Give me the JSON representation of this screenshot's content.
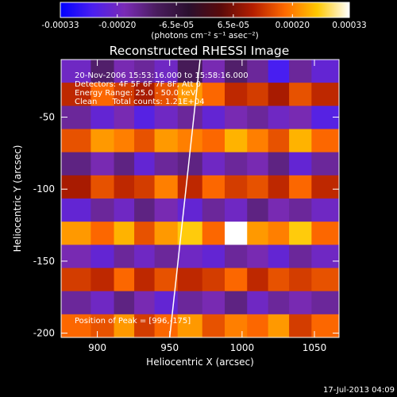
{
  "colors": {
    "background": "#000000",
    "foreground": "#ffffff",
    "colormap": [
      "#0000ff",
      "#4b1ff0",
      "#7a2bb6",
      "#4a1d5e",
      "#2a0f2e",
      "#5a0a0a",
      "#b41e00",
      "#ff6a00",
      "#ffc800",
      "#ffffff"
    ]
  },
  "chart_data": {
    "type": "heatmap",
    "title": "Reconstructed RHESSI Image",
    "xlabel": "Heliocentric X (arcsec)",
    "ylabel": "Heliocentric Y (arcsec)",
    "xlim": [
      875,
      1067
    ],
    "ylim": [
      -203,
      -10
    ],
    "xticks": [
      900,
      950,
      1000,
      1050
    ],
    "yticks": [
      -50,
      -100,
      -150,
      -200
    ],
    "colorbar": {
      "min": -0.00033,
      "max": 0.00033,
      "ticks": [
        -0.00033,
        -0.0002,
        -6.5e-05,
        6.5e-05,
        0.0002,
        0.00033
      ],
      "tick_labels": [
        "-0.00033",
        "-0.00020",
        "-6.5e-05",
        "6.5e-05",
        "0.00020",
        "0.00033"
      ],
      "unit_label": "(photons cm⁻² s⁻¹ asec⁻²)"
    },
    "annotations": {
      "time": "20-Nov-2006 15:53:16.000 to 15:58:16.000",
      "detectors": "Detectors: 4F 5F 6F 7F 8F, Att 0",
      "energy": "Energy Range: 25.0 - 50.0 keV",
      "method": "Clean      Total counts: 1.21E+04",
      "peak": "Position of Peak = [996,-175]"
    },
    "limb_line": [
      [
        950,
        -203
      ],
      [
        971,
        -10
      ]
    ],
    "column_x": [
      886,
      905,
      918,
      933,
      946,
      965,
      980,
      996,
      1011,
      1025,
      1040,
      1056
    ],
    "column_values": [
      [
        -0.0002,
        -0.00012,
        -0.00018,
        -0.00016,
        -0.0002,
        -0.0001,
        -0.00018,
        -0.00012,
        -0.00016,
        -0.00026,
        -0.00016,
        -0.00022
      ],
      [
        0.00012,
        0.00018,
        0.00014,
        0.0001,
        0.00016,
        0.00022,
        0.00018,
        0.00012,
        0.00014,
        0.0001,
        0.00016,
        0.00012
      ],
      [
        -0.00016,
        -0.00022,
        -0.00018,
        -0.00024,
        -0.0002,
        -0.00016,
        -0.00022,
        -0.00018,
        -0.00016,
        -0.0002,
        -0.00018,
        -0.00024
      ],
      [
        0.00016,
        0.00022,
        0.0002,
        0.00016,
        0.00022,
        0.0002,
        0.00018,
        0.00024,
        0.0002,
        0.00016,
        0.00024,
        0.00018
      ],
      [
        -0.00014,
        -0.00018,
        -0.00014,
        -0.00022,
        -0.00016,
        -0.00014,
        -0.0002,
        -0.00016,
        -0.00018,
        -0.00014,
        -0.00022,
        -0.00016
      ],
      [
        0.0001,
        0.00016,
        0.00012,
        0.00014,
        0.0002,
        0.00012,
        0.00018,
        0.00014,
        0.00016,
        0.00012,
        0.00018,
        0.00012
      ],
      [
        -0.00022,
        -0.00016,
        -0.0002,
        -0.00014,
        -0.00018,
        -0.00022,
        -0.00016,
        -0.0002,
        -0.00014,
        -0.00018,
        -0.00016,
        -0.0002
      ],
      [
        0.00022,
        0.00018,
        0.00024,
        0.00016,
        0.00022,
        0.00026,
        0.00018,
        0.00033,
        0.00022,
        0.0002,
        0.00026,
        0.00018
      ],
      [
        -0.00018,
        -0.00022,
        -0.00016,
        -0.0002,
        -0.00016,
        -0.0002,
        -0.00022,
        -0.00016,
        -0.00018,
        -0.00022,
        -0.00016,
        -0.0002
      ],
      [
        0.00014,
        0.00012,
        0.00018,
        0.00012,
        0.00016,
        0.00012,
        0.00014,
        0.00018,
        0.00012,
        0.00016,
        0.00014,
        0.00016
      ],
      [
        -0.00016,
        -0.0002,
        -0.00014,
        -0.00018,
        -0.00022,
        -0.00016,
        -0.00018,
        -0.00014,
        -0.0002,
        -0.00016,
        -0.00018,
        -0.00016
      ],
      [
        0.00018,
        0.00016,
        0.00022,
        0.00014,
        0.00018,
        0.00022,
        0.00016,
        0.0002,
        0.00018,
        0.00022,
        0.00014,
        0.00018
      ]
    ]
  },
  "footer": {
    "date": "17-Jul-2013 04:09"
  }
}
